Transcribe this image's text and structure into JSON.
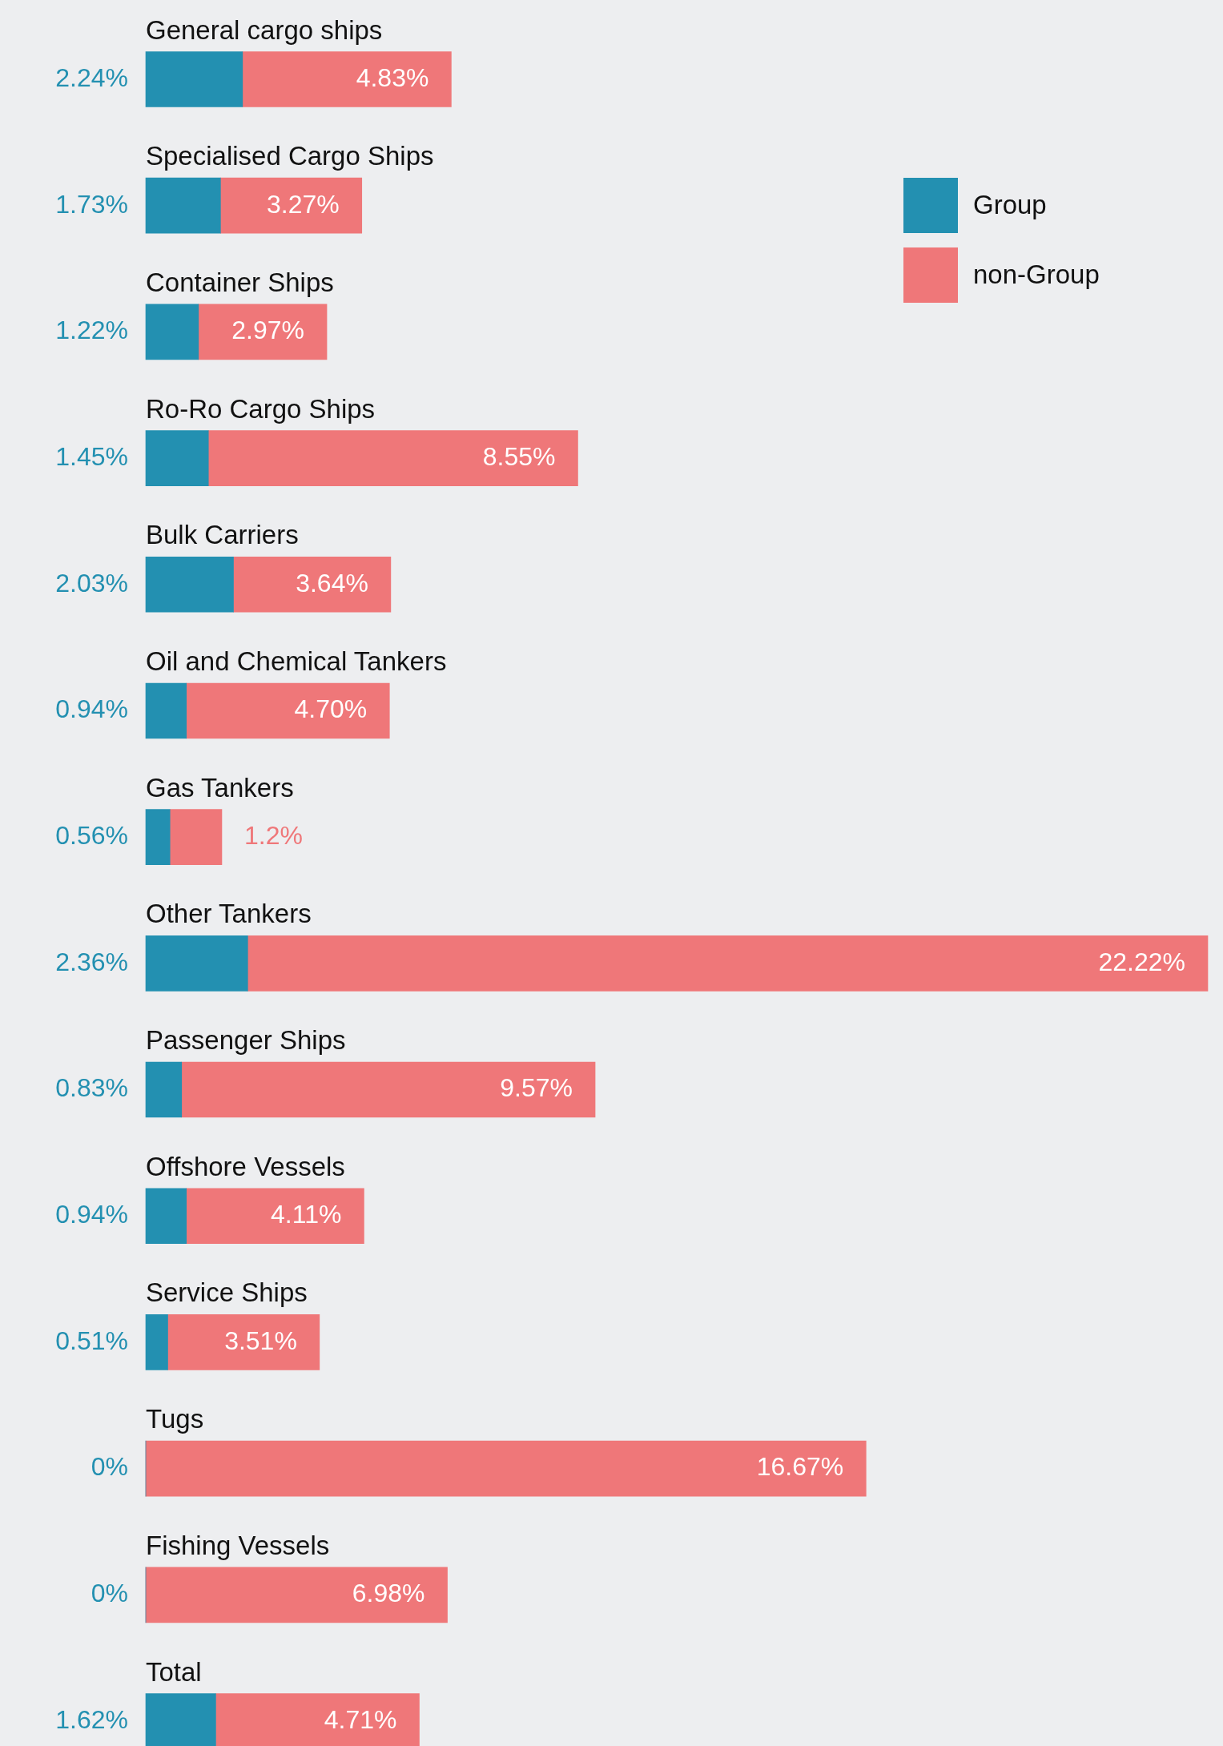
{
  "chart_data": {
    "type": "bar",
    "orientation": "horizontal",
    "stacked": true,
    "legend": "top right",
    "categories": [
      "General cargo ships",
      "Specialised Cargo Ships",
      "Container Ships",
      "Ro-Ro Cargo Ships",
      "Bulk Carriers",
      "Oil and Chemical Tankers",
      "Gas Tankers",
      "Other Tankers",
      "Passenger Ships",
      "Offshore Vessels",
      "Service Ships",
      "Tugs",
      "Fishing Vessels",
      "Total"
    ],
    "series": [
      {
        "name": "Group",
        "color": "#2390b1",
        "values": [
          2.24,
          1.73,
          1.22,
          1.45,
          2.03,
          0.94,
          0.56,
          2.36,
          0.83,
          0.94,
          0.51,
          0,
          0,
          1.62
        ],
        "value_labels": [
          "2.24%",
          "1.73%",
          "1.22%",
          "1.45%",
          "2.03%",
          "0.94%",
          "0.56%",
          "2.36%",
          "0.83%",
          "0.94%",
          "0.51%",
          "0%",
          "0%",
          "1.62%"
        ]
      },
      {
        "name": "non-Group",
        "color": "#ef7779",
        "values": [
          4.83,
          3.27,
          2.97,
          8.55,
          3.64,
          4.7,
          1.2,
          22.22,
          9.57,
          4.11,
          3.51,
          16.67,
          6.98,
          4.71
        ],
        "value_labels": [
          "4.83%",
          "3.27%",
          "2.97%",
          "8.55%",
          "3.64%",
          "4.70%",
          "1.2%",
          "22.22%",
          "9.57%",
          "4.11%",
          "3.51%",
          "16.67%",
          "6.98%",
          "4.71%"
        ]
      }
    ]
  }
}
